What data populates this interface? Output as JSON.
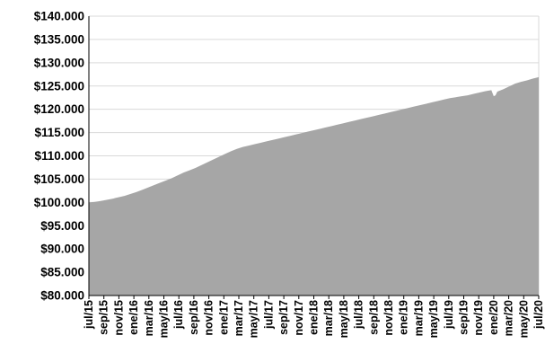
{
  "chart_data": {
    "type": "area",
    "title": "",
    "xlabel": "",
    "ylabel": "",
    "ylim": [
      80000,
      140000
    ],
    "y_ticks": [
      "$80.000",
      "$85.000",
      "$90.000",
      "$95.000",
      "$100.000",
      "$105.000",
      "$110.000",
      "$115.000",
      "$120.000",
      "$125.000",
      "$130.000",
      "$135.000",
      "$140.000"
    ],
    "y_tick_values": [
      80000,
      85000,
      90000,
      95000,
      100000,
      105000,
      110000,
      115000,
      120000,
      125000,
      130000,
      135000,
      140000
    ],
    "x_ticks": [
      "jul/15",
      "sep/15",
      "nov/15",
      "ene/16",
      "mar/16",
      "may/16",
      "jul/16",
      "sep/16",
      "nov/16",
      "ene/17",
      "mar/17",
      "may/17",
      "jul/17",
      "sep/17",
      "nov/17",
      "ene/18",
      "mar/18",
      "may/18",
      "jul/18",
      "sep/18",
      "nov/18",
      "ene/19",
      "mar/19",
      "may/19",
      "jul/19",
      "sep/19",
      "nov/19",
      "ene/20",
      "mar/20",
      "may/20",
      "jul/20"
    ],
    "grid": true,
    "colors": {
      "area": "#a6a6a6",
      "grid": "#d9d9d9",
      "axis": "#000000"
    },
    "series": [
      {
        "points": [
          [
            0,
            100000
          ],
          [
            1,
            100100
          ],
          [
            2,
            100300
          ],
          [
            3,
            100550
          ],
          [
            4,
            100800
          ],
          [
            5,
            101100
          ],
          [
            6,
            101400
          ],
          [
            7,
            101800
          ],
          [
            8,
            102200
          ],
          [
            9,
            102700
          ],
          [
            10,
            103200
          ],
          [
            11,
            103700
          ],
          [
            12,
            104200
          ],
          [
            13,
            104700
          ],
          [
            14,
            105200
          ],
          [
            15,
            105800
          ],
          [
            16,
            106400
          ],
          [
            17,
            106900
          ],
          [
            18,
            107400
          ],
          [
            19,
            108000
          ],
          [
            20,
            108600
          ],
          [
            21,
            109200
          ],
          [
            22,
            109800
          ],
          [
            23,
            110400
          ],
          [
            24,
            111000
          ],
          [
            25,
            111500
          ],
          [
            26,
            111900
          ],
          [
            27,
            112200
          ],
          [
            28,
            112500
          ],
          [
            29,
            112800
          ],
          [
            30,
            113100
          ],
          [
            31,
            113400
          ],
          [
            32,
            113700
          ],
          [
            33,
            114000
          ],
          [
            34,
            114300
          ],
          [
            35,
            114600
          ],
          [
            36,
            114900
          ],
          [
            37,
            115200
          ],
          [
            38,
            115500
          ],
          [
            39,
            115800
          ],
          [
            40,
            116100
          ],
          [
            41,
            116400
          ],
          [
            42,
            116700
          ],
          [
            43,
            117000
          ],
          [
            44,
            117300
          ],
          [
            45,
            117600
          ],
          [
            46,
            117900
          ],
          [
            47,
            118200
          ],
          [
            48,
            118500
          ],
          [
            49,
            118800
          ],
          [
            50,
            119100
          ],
          [
            51,
            119400
          ],
          [
            52,
            119700
          ],
          [
            53,
            120000
          ],
          [
            54,
            120300
          ],
          [
            55,
            120600
          ],
          [
            56,
            120900
          ],
          [
            57,
            121200
          ],
          [
            58,
            121500
          ],
          [
            59,
            121800
          ],
          [
            60,
            122100
          ],
          [
            61,
            122400
          ],
          [
            62,
            122600
          ],
          [
            63,
            122800
          ],
          [
            64,
            123000
          ],
          [
            65,
            123300
          ],
          [
            66,
            123600
          ],
          [
            67,
            123900
          ],
          [
            68,
            124100
          ],
          [
            68.4,
            122800
          ],
          [
            68.7,
            123000
          ],
          [
            69,
            123800
          ],
          [
            70,
            124300
          ],
          [
            71,
            124900
          ],
          [
            72,
            125500
          ],
          [
            73,
            125900
          ],
          [
            74,
            126200
          ],
          [
            75,
            126600
          ],
          [
            76,
            126900
          ]
        ]
      }
    ]
  }
}
